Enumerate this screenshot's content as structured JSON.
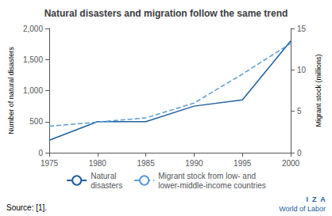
{
  "chart_data": {
    "type": "line",
    "title": "Natural disasters and migration follow the same trend",
    "x": [
      1975,
      1980,
      1985,
      1990,
      1995,
      2000
    ],
    "xlim": [
      1975,
      2000
    ],
    "xticks": [
      1975,
      1980,
      1985,
      1990,
      1995,
      2000
    ],
    "ylabel": "Number of natural disasters",
    "y2label": "Migrant stock (millions)",
    "ylim": [
      0,
      2000
    ],
    "yticks": [
      0,
      500,
      {
        "value": 1000,
        "label": "1,000"
      },
      {
        "value": 1500,
        "label": "1,500"
      },
      {
        "value": 2000,
        "label": "2,000"
      }
    ],
    "y2lim": [
      0,
      15
    ],
    "y2ticks": [
      0,
      5,
      10,
      15
    ],
    "grid": false,
    "legend": "bottom",
    "series": [
      {
        "name": "Natural\ndisasters",
        "color": "#2060A0",
        "line_style": "solid",
        "values": [
          200,
          500,
          500,
          750,
          850,
          1800
        ]
      },
      {
        "name": "Migrant stock from low- and\nlower-middle-income countries",
        "color": "#5B9BD5",
        "line_style": "dashed",
        "axis": "y2",
        "values": [
          3.2,
          3.7,
          4.2,
          6.0,
          9.5,
          13.2
        ]
      }
    ],
    "annotations": [
      "Source: [1].",
      "I  Z  A",
      "World of Labor"
    ]
  }
}
